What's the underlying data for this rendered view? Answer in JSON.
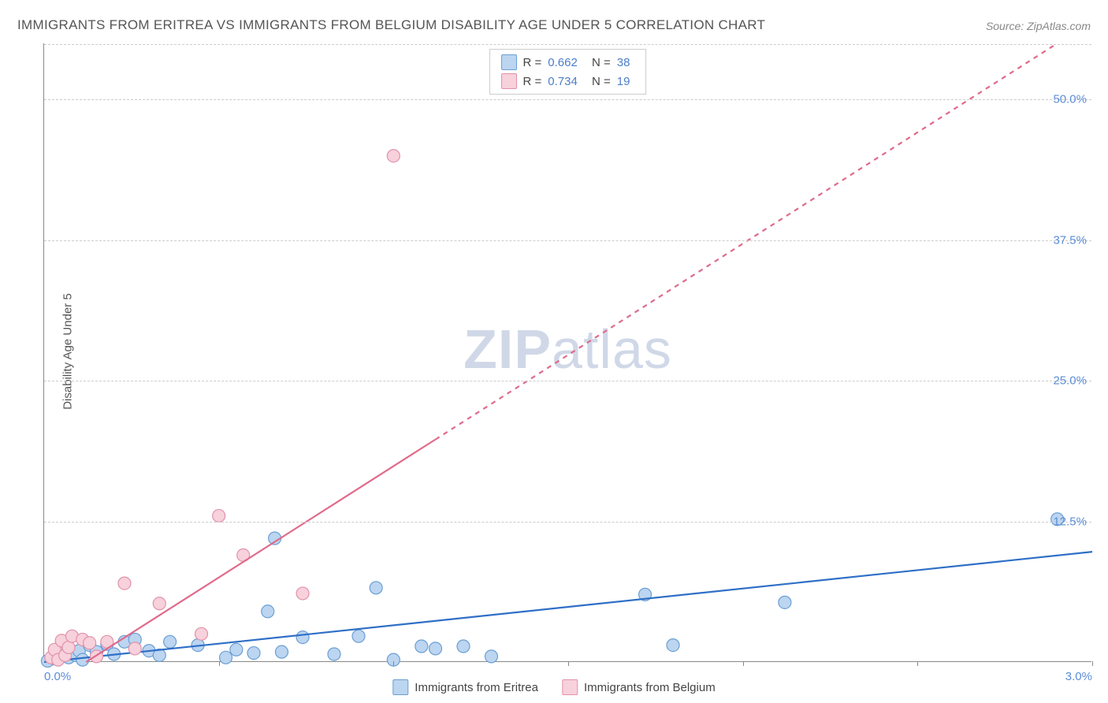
{
  "title": "IMMIGRANTS FROM ERITREA VS IMMIGRANTS FROM BELGIUM DISABILITY AGE UNDER 5 CORRELATION CHART",
  "source": "Source: ZipAtlas.com",
  "y_axis_label": "Disability Age Under 5",
  "watermark": {
    "bold": "ZIP",
    "rest": "atlas"
  },
  "chart": {
    "type": "scatter_with_regression",
    "background_color": "#ffffff",
    "grid_color": "#cccccc",
    "grid_dash": "4,4",
    "xlim": [
      0.0,
      3.0
    ],
    "ylim": [
      0.0,
      55.0
    ],
    "y_ticks": [
      {
        "value": 12.5,
        "label": "12.5%"
      },
      {
        "value": 25.0,
        "label": "25.0%"
      },
      {
        "value": 37.5,
        "label": "37.5%"
      },
      {
        "value": 50.0,
        "label": "50.0%"
      }
    ],
    "x_tick_positions": [
      0.5,
      1.0,
      1.5,
      2.0,
      2.5,
      3.0
    ],
    "x_tick_labels": [
      {
        "value": 0.0,
        "label": "0.0%"
      },
      {
        "value": 3.0,
        "label": "3.0%"
      }
    ],
    "series": [
      {
        "name": "Immigrants from Eritrea",
        "marker_color_fill": "#bcd5f0",
        "marker_color_stroke": "#6a9fd4",
        "marker_radius": 8,
        "line_color": "#2f6fc7",
        "line_width": 2.2,
        "R": "0.662",
        "N": "38",
        "trend": {
          "x1": 0.0,
          "y1": 0.0,
          "x2": 3.0,
          "y2": 9.8,
          "style": "solid"
        },
        "points": [
          [
            0.01,
            0.1
          ],
          [
            0.03,
            0.3
          ],
          [
            0.04,
            0.8
          ],
          [
            0.05,
            0.5
          ],
          [
            0.06,
            1.2
          ],
          [
            0.07,
            0.4
          ],
          [
            0.09,
            0.6
          ],
          [
            0.1,
            1.0
          ],
          [
            0.11,
            0.2
          ],
          [
            0.13,
            1.5
          ],
          [
            0.15,
            0.9
          ],
          [
            0.18,
            1.6
          ],
          [
            0.2,
            0.7
          ],
          [
            0.23,
            1.8
          ],
          [
            0.26,
            2.0
          ],
          [
            0.3,
            1.0
          ],
          [
            0.33,
            0.6
          ],
          [
            0.36,
            1.8
          ],
          [
            0.44,
            1.5
          ],
          [
            0.52,
            0.4
          ],
          [
            0.55,
            1.1
          ],
          [
            0.6,
            0.8
          ],
          [
            0.64,
            4.5
          ],
          [
            0.66,
            11.0
          ],
          [
            0.68,
            0.9
          ],
          [
            0.74,
            2.2
          ],
          [
            0.83,
            0.7
          ],
          [
            0.9,
            2.3
          ],
          [
            0.95,
            6.6
          ],
          [
            1.0,
            0.2
          ],
          [
            1.08,
            1.4
          ],
          [
            1.12,
            1.2
          ],
          [
            1.2,
            1.4
          ],
          [
            1.28,
            0.5
          ],
          [
            1.72,
            6.0
          ],
          [
            1.8,
            1.5
          ],
          [
            2.12,
            5.3
          ],
          [
            2.9,
            12.7
          ]
        ]
      },
      {
        "name": "Immigrants from Belgium",
        "marker_color_fill": "#f7d1db",
        "marker_color_stroke": "#e192ab",
        "marker_radius": 8,
        "line_color": "#e06a8a",
        "line_width": 2.2,
        "R": "0.734",
        "N": "19",
        "trend": {
          "x1": 0.12,
          "y1": 0.0,
          "x2": 2.9,
          "y2": 55.0,
          "style": "solid_then_dashed",
          "dash_after_x": 1.12
        },
        "points": [
          [
            0.02,
            0.4
          ],
          [
            0.03,
            1.1
          ],
          [
            0.04,
            0.2
          ],
          [
            0.05,
            1.9
          ],
          [
            0.06,
            0.6
          ],
          [
            0.07,
            1.3
          ],
          [
            0.08,
            2.3
          ],
          [
            0.11,
            2.0
          ],
          [
            0.13,
            1.7
          ],
          [
            0.15,
            0.5
          ],
          [
            0.18,
            1.8
          ],
          [
            0.23,
            7.0
          ],
          [
            0.26,
            1.2
          ],
          [
            0.33,
            5.2
          ],
          [
            0.45,
            2.5
          ],
          [
            0.5,
            13.0
          ],
          [
            0.57,
            9.5
          ],
          [
            0.74,
            6.1
          ],
          [
            1.0,
            45.0
          ]
        ]
      }
    ]
  },
  "bottom_legend": [
    {
      "label": "Immigrants from Eritrea",
      "fill": "#bcd5f0",
      "stroke": "#6a9fd4"
    },
    {
      "label": "Immigrants from Belgium",
      "fill": "#f7d1db",
      "stroke": "#e192ab"
    }
  ]
}
